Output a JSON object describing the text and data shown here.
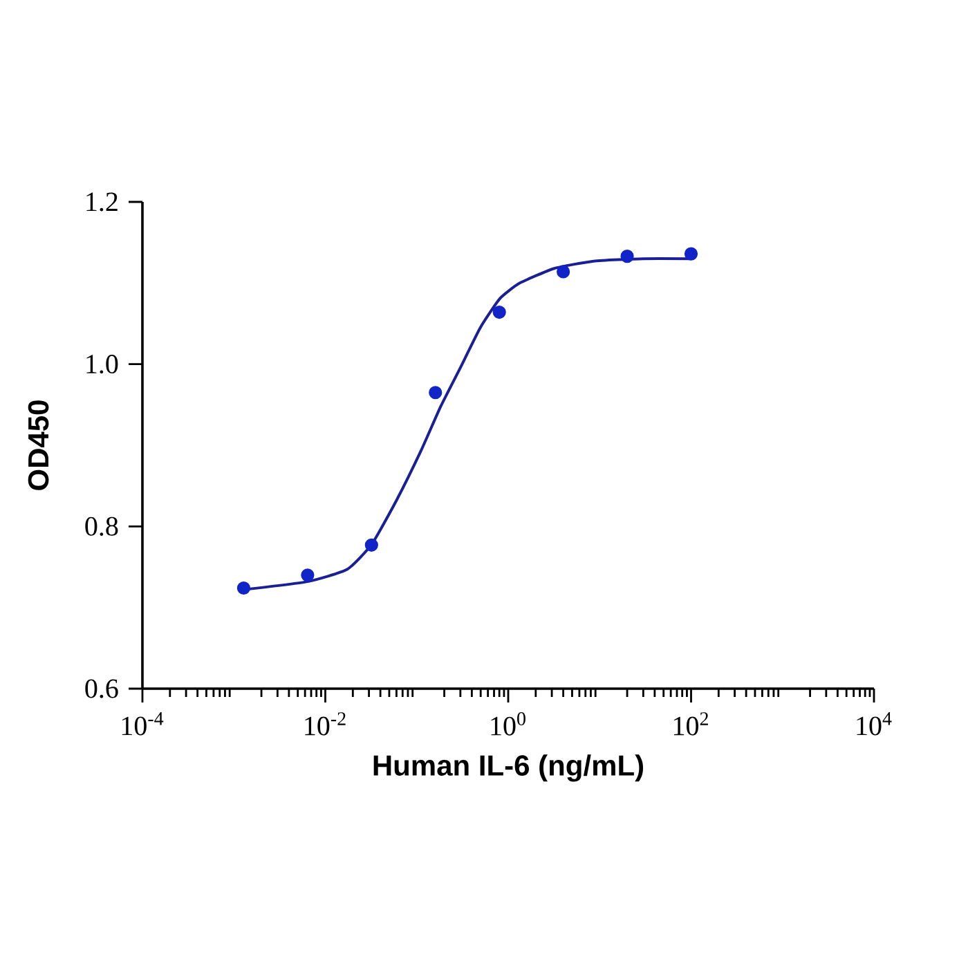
{
  "chart_data": {
    "type": "scatter",
    "xlabel": "Human IL-6 (ng/mL)",
    "ylabel": "OD450",
    "log": "x",
    "xlim": [
      0.0001,
      10000
    ],
    "ylim": [
      0.6,
      1.2
    ],
    "xticks": [
      {
        "value": 0.0001,
        "label": "10$^{-4}$"
      },
      {
        "value": 0.01,
        "label": "10$^{-2}$"
      },
      {
        "value": 1,
        "label": "10$^{0}$"
      },
      {
        "value": 100,
        "label": "10$^{2}$"
      },
      {
        "value": 10000,
        "label": "10$^{4}$"
      }
    ],
    "yticks": [
      0.6,
      0.8,
      {
        "value": 1.0,
        "label": "1.0"
      },
      1.2
    ],
    "series": [
      {
        "marker": "circle",
        "color": "#1024c8",
        "x": [
          0.00128,
          0.0064,
          0.032,
          0.16,
          0.8,
          4,
          20,
          100
        ],
        "values": [
          0.724,
          0.74,
          0.777,
          0.965,
          1.064,
          1.114,
          1.133,
          1.136
        ]
      },
      {
        "type": "line",
        "marker": "none",
        "color": "#1a1f96",
        "x": [
          0.00128,
          0.0064,
          0.0173,
          0.0322,
          0.06,
          0.111,
          0.183,
          0.301,
          0.495,
          0.813,
          1.34,
          3.19,
          8.6,
          29.9,
          100
        ],
        "values": [
          0.722,
          0.732,
          0.747,
          0.778,
          0.832,
          0.893,
          0.948,
          0.996,
          1.045,
          1.081,
          1.1,
          1.118,
          1.127,
          1.13,
          1.13
        ]
      }
    ]
  }
}
